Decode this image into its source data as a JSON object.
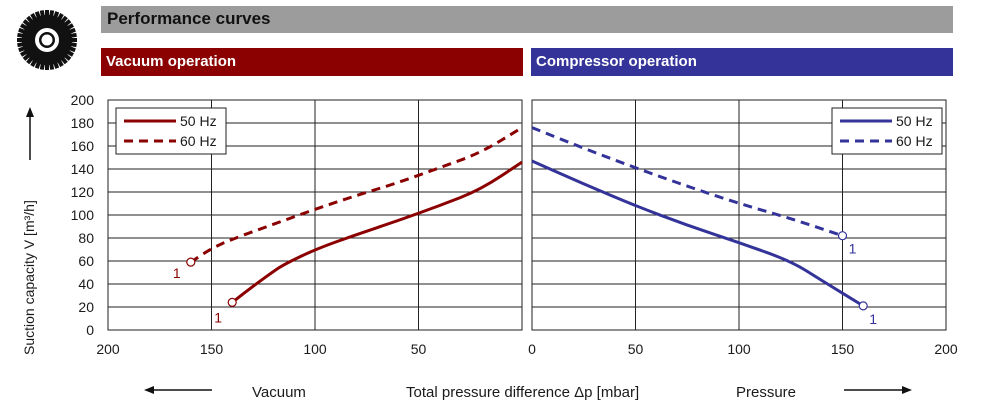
{
  "header": {
    "title": "Performance curves",
    "logo_icon": "gear-icon"
  },
  "sections": {
    "vacuum": "Vacuum operation",
    "compressor": "Compressor operation"
  },
  "colors": {
    "vacuum": "#8b0000",
    "compressor": "#33339a",
    "banner": "#9c9c9c"
  },
  "footer": {
    "left": "Vacuum",
    "center": "Total pressure difference Δp [mbar]",
    "right": "Pressure"
  },
  "chart_data": [
    {
      "type": "line",
      "xlabel": "Total pressure difference Δp [mbar]",
      "ylabel": "Suction capacity V [m³/h]",
      "x_reversed": true,
      "xlim": [
        200,
        0
      ],
      "ylim": [
        0,
        200
      ],
      "x_ticks": [
        200,
        150,
        100,
        50
      ],
      "y_ticks": [
        0,
        20,
        40,
        60,
        80,
        100,
        120,
        140,
        160,
        180,
        200
      ],
      "grid": true,
      "legend_position": "top-left",
      "series": [
        {
          "name": "50 Hz",
          "style": "solid",
          "color": "#8b0000",
          "x": [
            140,
            130,
            120,
            115,
            100,
            80,
            60,
            40,
            20,
            0
          ],
          "y": [
            24,
            38,
            51,
            57,
            70,
            83,
            95,
            108,
            122,
            146
          ],
          "endpoint_label": "1"
        },
        {
          "name": "60 Hz",
          "style": "dashed",
          "color": "#8b0000",
          "x": [
            160,
            150,
            140,
            120,
            100,
            80,
            60,
            40,
            20,
            0
          ],
          "y": [
            59,
            71,
            79,
            92,
            105,
            117,
            128,
            141,
            154,
            176
          ],
          "endpoint_label": "1"
        }
      ]
    },
    {
      "type": "line",
      "xlim": [
        0,
        200
      ],
      "ylim": [
        0,
        200
      ],
      "x_ticks": [
        0,
        50,
        100,
        150,
        200
      ],
      "grid": true,
      "legend_position": "top-right",
      "series": [
        {
          "name": "50 Hz",
          "style": "solid",
          "color": "#33339a",
          "x": [
            0,
            25,
            50,
            75,
            100,
            125,
            140,
            160
          ],
          "y": [
            147,
            127,
            108,
            91,
            76,
            60,
            43,
            21
          ],
          "endpoint_label": "1"
        },
        {
          "name": "60 Hz",
          "style": "dashed",
          "color": "#33339a",
          "x": [
            0,
            25,
            50,
            75,
            100,
            125,
            150
          ],
          "y": [
            176,
            158,
            141,
            125,
            110,
            97,
            82
          ],
          "endpoint_label": "1"
        }
      ]
    }
  ]
}
